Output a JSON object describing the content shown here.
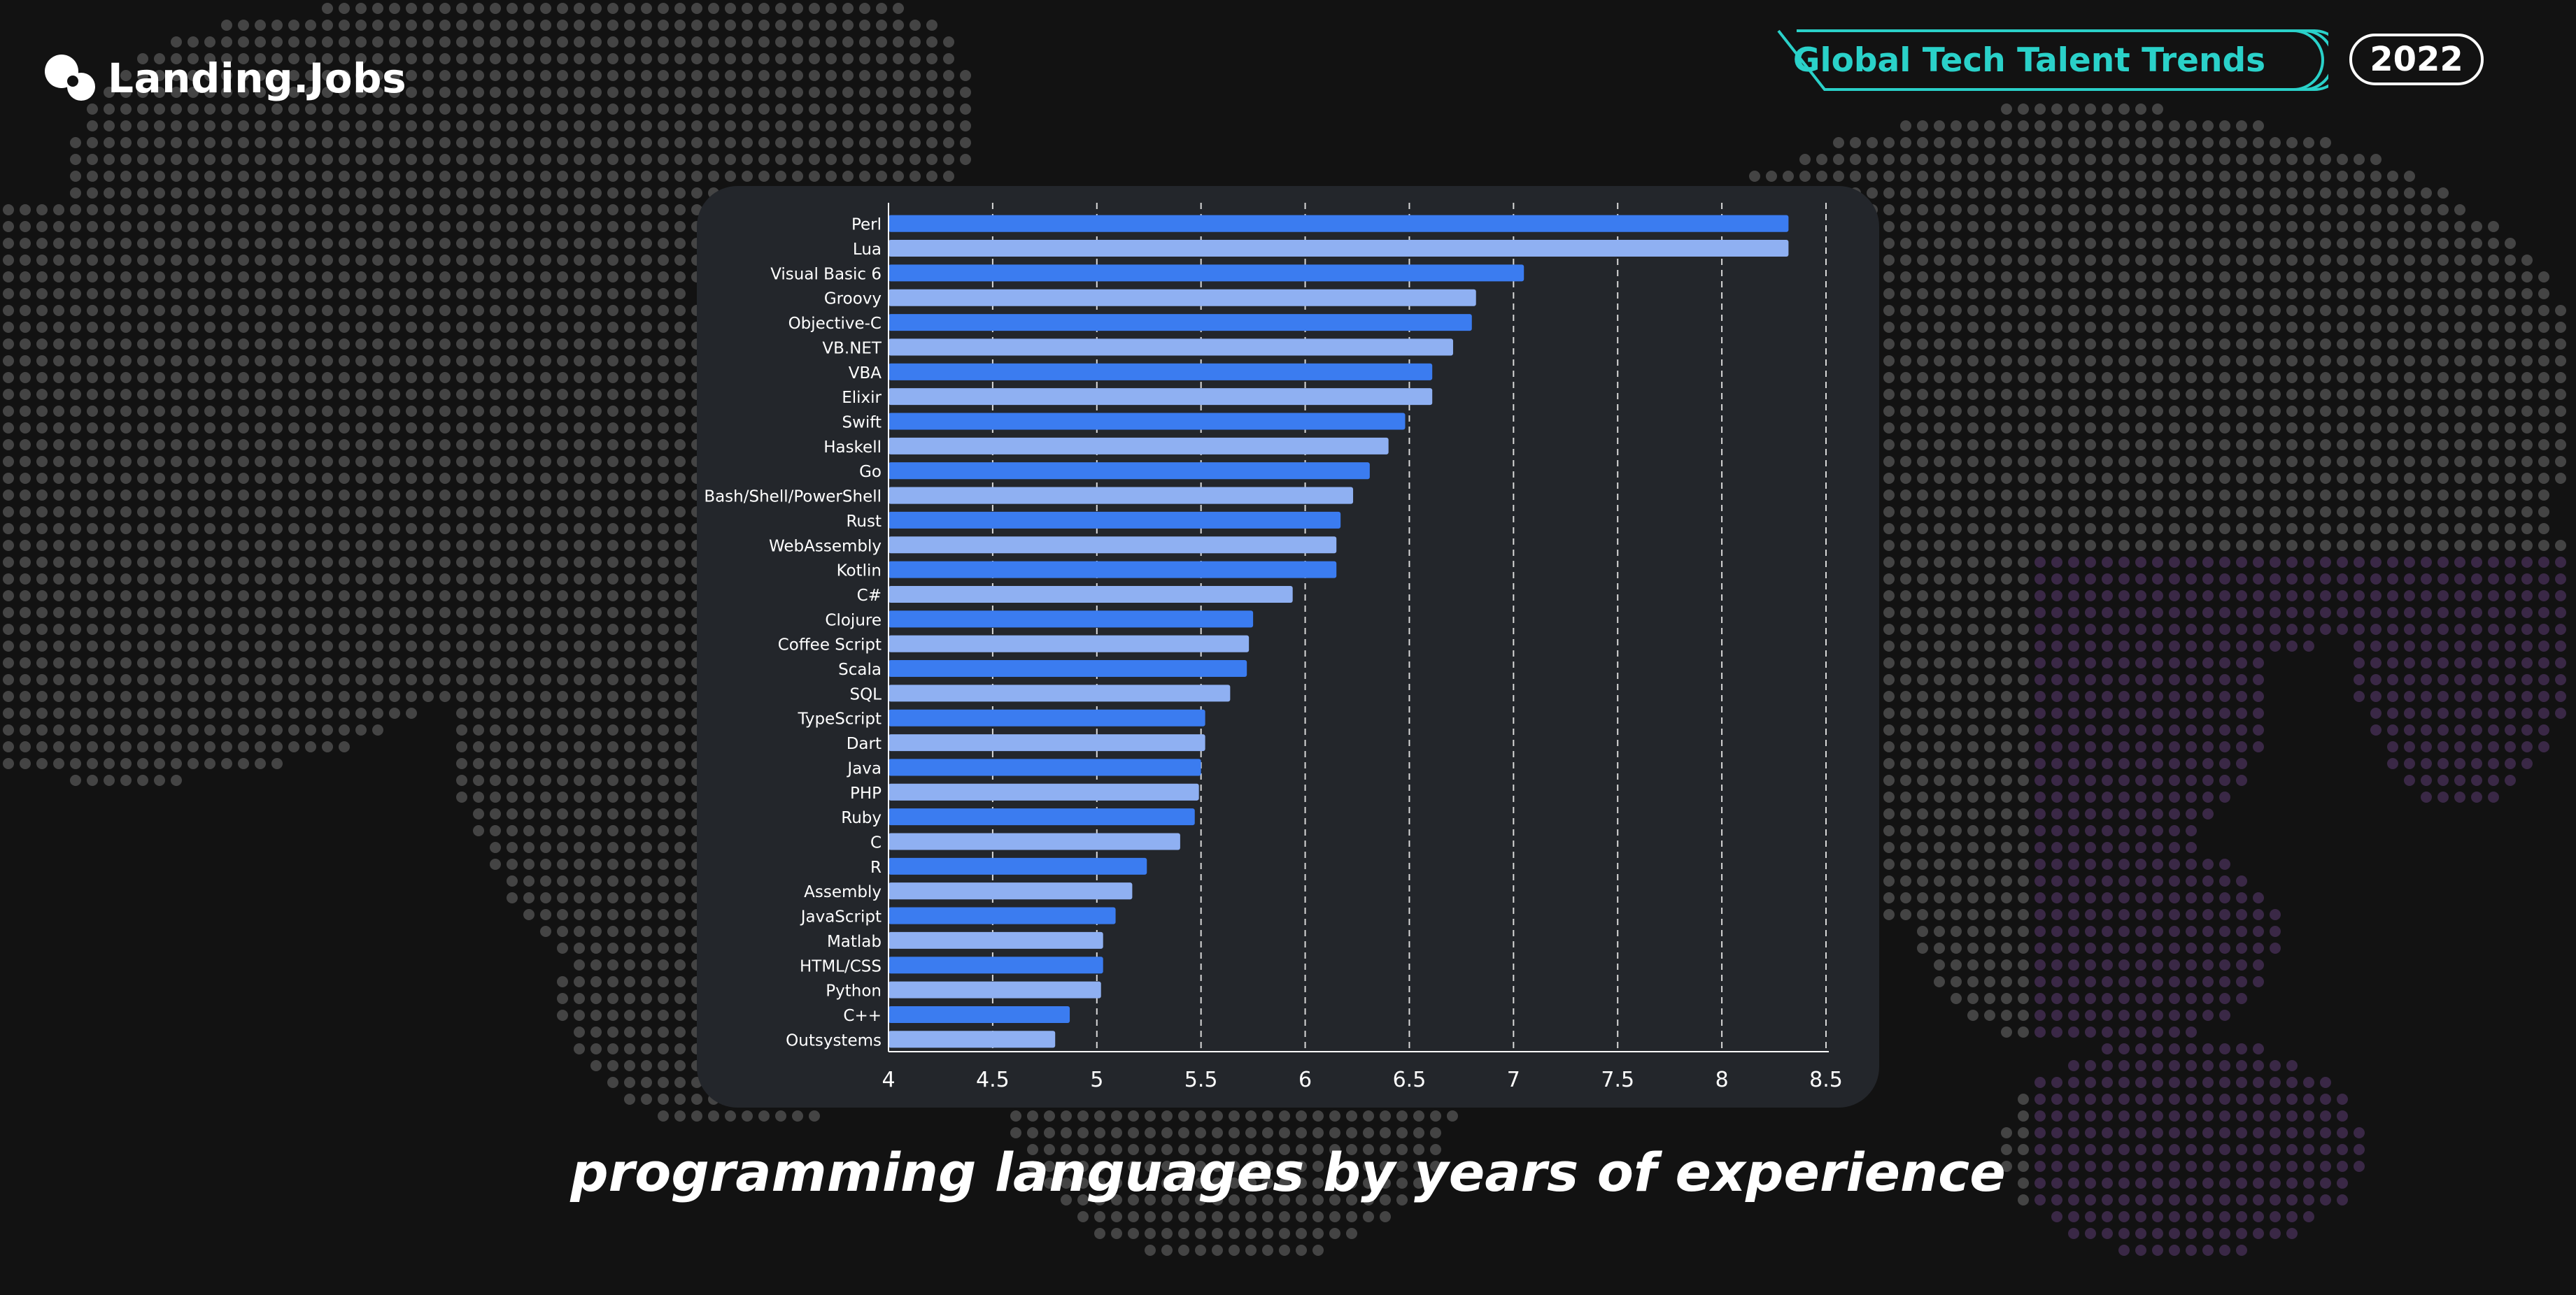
{
  "brand": {
    "name": "Landing.Jobs"
  },
  "report": {
    "title": "Global Tech Talent Trends",
    "year": "2022"
  },
  "caption": "programming languages by years of experience",
  "colors": {
    "bar_primary": "#3b7cf0",
    "bar_secondary": "#8fb0f2",
    "badge_teal": "#2ad1c9",
    "card": "#23262b",
    "background": "#121212"
  },
  "chart_data": {
    "type": "bar",
    "orientation": "horizontal",
    "categories": [
      "Perl",
      "Lua",
      "Visual Basic 6",
      "Groovy",
      "Objective-C",
      "VB.NET",
      "VBA",
      "Elixir",
      "Swift",
      "Haskell",
      "Go",
      "Bash/Shell/PowerShell",
      "Rust",
      "WebAssembly",
      "Kotlin",
      "C#",
      "Clojure",
      "Coffee Script",
      "Scala",
      "SQL",
      "TypeScript",
      "Dart",
      "Java",
      "PHP",
      "Ruby",
      "C",
      "R",
      "Assembly",
      "JavaScript",
      "Matlab",
      "HTML/CSS",
      "Python",
      "C++",
      "Outsystems"
    ],
    "values": [
      8.32,
      8.32,
      7.05,
      6.82,
      6.8,
      6.71,
      6.61,
      6.61,
      6.48,
      6.4,
      6.31,
      6.23,
      6.17,
      6.15,
      6.15,
      5.94,
      5.75,
      5.73,
      5.72,
      5.64,
      5.52,
      5.52,
      5.5,
      5.49,
      5.47,
      5.4,
      5.24,
      5.17,
      5.09,
      5.03,
      5.03,
      5.02,
      4.87,
      4.8
    ],
    "xticks": [
      "4",
      "4.5",
      "5",
      "5.5",
      "6",
      "6.5",
      "7",
      "7.5",
      "8",
      "8.5"
    ],
    "xlim": [
      4,
      8.5
    ],
    "grid": "vertical dashed",
    "title": "",
    "xlabel": "",
    "ylabel": ""
  }
}
